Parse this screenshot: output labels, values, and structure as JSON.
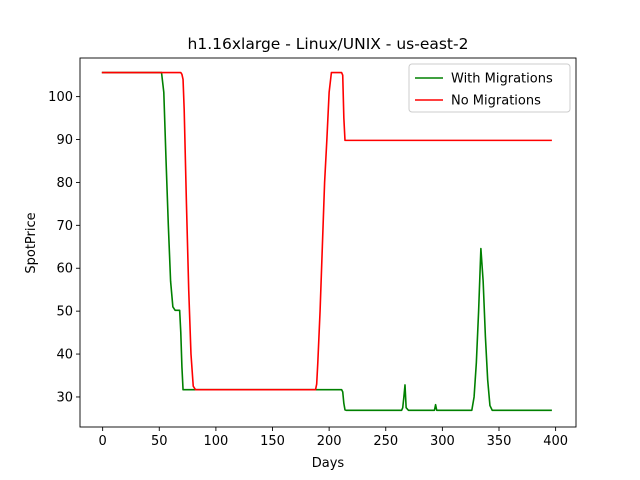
{
  "chart_data": {
    "type": "line",
    "title": "h1.16xlarge - Linux/UNIX - us-east-2",
    "xlabel": "Days",
    "ylabel": "SpotPrice",
    "xlim": [
      -20,
      418
    ],
    "ylim": [
      23,
      109
    ],
    "xticks": [
      0,
      50,
      100,
      150,
      200,
      250,
      300,
      350,
      400
    ],
    "yticks": [
      30,
      40,
      50,
      60,
      70,
      80,
      90,
      100
    ],
    "grid": false,
    "legend_position": "top-right",
    "series": [
      {
        "name": "With Migrations",
        "color": "#008000",
        "x": [
          0,
          52,
          54,
          56,
          58,
          60,
          62,
          64,
          66,
          68,
          69,
          70,
          71,
          72,
          100,
          150,
          200,
          211,
          212,
          213,
          214,
          215,
          220,
          250,
          264,
          265,
          266,
          267,
          268,
          270,
          290,
          293,
          294,
          295,
          296,
          300,
          320,
          326,
          328,
          330,
          332,
          334,
          336,
          338,
          340,
          342,
          344,
          346,
          350,
          380,
          396
        ],
        "y": [
          105.6,
          105.6,
          101,
          85,
          70,
          57,
          51,
          50.2,
          50.2,
          50.2,
          45,
          37,
          31.7,
          31.7,
          31.7,
          31.7,
          31.7,
          31.7,
          31.2,
          28.5,
          27,
          26.9,
          26.9,
          26.9,
          26.9,
          27.5,
          30,
          32.8,
          27.5,
          26.9,
          26.9,
          26.9,
          28.2,
          26.9,
          26.9,
          26.9,
          26.9,
          26.9,
          30,
          38,
          50,
          64.6,
          57,
          44,
          34,
          28,
          26.9,
          26.9,
          26.9,
          26.9,
          26.9
        ]
      },
      {
        "name": "No Migrations",
        "color": "#ff0000",
        "x": [
          0,
          69,
          70,
          71,
          72,
          74,
          76,
          78,
          80,
          82,
          100,
          150,
          188,
          189,
          190,
          192,
          194,
          196,
          198,
          200,
          202,
          211,
          212,
          213,
          214,
          215,
          250,
          300,
          350,
          396
        ],
        "y": [
          105.6,
          105.6,
          105.2,
          104,
          97,
          75,
          55,
          40,
          32.5,
          31.7,
          31.7,
          31.7,
          31.7,
          33,
          38,
          50,
          65,
          80,
          90,
          101,
          105.6,
          105.6,
          105,
          95,
          89.8,
          89.8,
          89.8,
          89.8,
          89.8,
          89.8
        ]
      }
    ]
  }
}
